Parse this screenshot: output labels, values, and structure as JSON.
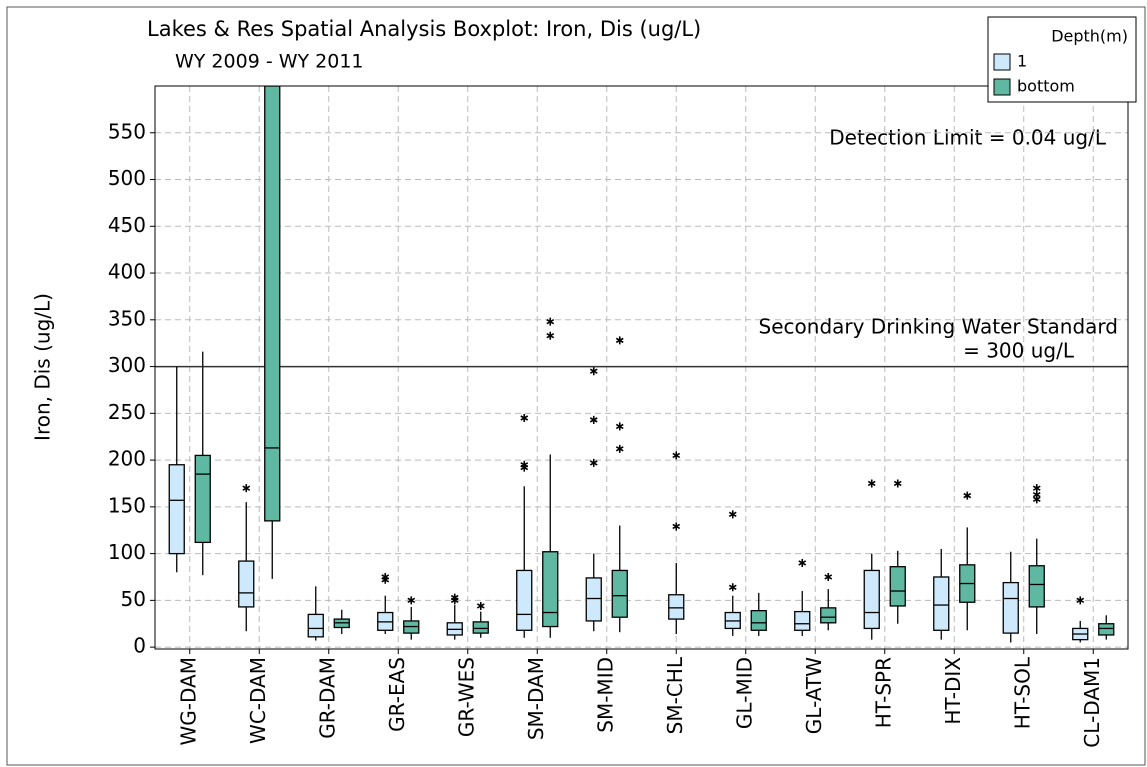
{
  "chart_data": {
    "type": "boxplot",
    "title": "Lakes & Res Spatial Analysis Boxplot: Iron, Dis (ug/L)",
    "subtitle": "WY 2009 - WY 2011",
    "y_label": "Iron, Dis (ug/L)",
    "categories": [
      "WG-DAM",
      "WC-DAM",
      "GR-DAM",
      "GR-EAS",
      "GR-WES",
      "SM-DAM",
      "SM-MID",
      "SM-CHL",
      "GL-MID",
      "GL-ATW",
      "HT-SPR",
      "HT-DIX",
      "HT-SOL",
      "CL-DAM1"
    ],
    "legend_title": "Depth(m)",
    "legend_position": "top-right",
    "grid": true,
    "ylim": [
      -2,
      600
    ],
    "yticks": [
      0,
      50,
      100,
      150,
      200,
      250,
      300,
      350,
      400,
      450,
      500,
      550
    ],
    "reference_line": {
      "value": 300,
      "label_lines": [
        "Secondary Drinking Water Standard",
        "= 300 ug/L"
      ]
    },
    "annotation": "Detection Limit = 0.04 ug/L",
    "series": [
      {
        "name": "1",
        "color": "#cde9fb",
        "boxes": [
          {
            "min": 80,
            "q1": 100,
            "median": 157,
            "q3": 195,
            "max": 300,
            "outliers": []
          },
          {
            "min": 17,
            "q1": 43,
            "median": 58,
            "q3": 92,
            "max": 155,
            "outliers": [
              170
            ]
          },
          {
            "min": 7,
            "q1": 11,
            "median": 20,
            "q3": 35,
            "max": 65,
            "outliers": []
          },
          {
            "min": 14,
            "q1": 18,
            "median": 27,
            "q3": 37,
            "max": 55,
            "outliers": [
              72,
              75
            ]
          },
          {
            "min": 8,
            "q1": 13,
            "median": 19,
            "q3": 26,
            "max": 45,
            "outliers": [
              50,
              53
            ]
          },
          {
            "min": 10,
            "q1": 18,
            "median": 35,
            "q3": 82,
            "max": 172,
            "outliers": [
              192,
              195,
              245
            ]
          },
          {
            "min": 17,
            "q1": 28,
            "median": 52,
            "q3": 74,
            "max": 100,
            "outliers": [
              197,
              243,
              295
            ]
          },
          {
            "min": 14,
            "q1": 30,
            "median": 42,
            "q3": 56,
            "max": 90,
            "outliers": [
              129,
              205
            ]
          },
          {
            "min": 12,
            "q1": 20,
            "median": 28,
            "q3": 37,
            "max": 55,
            "outliers": [
              64,
              142
            ]
          },
          {
            "min": 12,
            "q1": 18,
            "median": 25,
            "q3": 38,
            "max": 60,
            "outliers": [
              90
            ]
          },
          {
            "min": 8,
            "q1": 20,
            "median": 37,
            "q3": 82,
            "max": 100,
            "outliers": [
              175
            ]
          },
          {
            "min": 8,
            "q1": 18,
            "median": 45,
            "q3": 75,
            "max": 105,
            "outliers": []
          },
          {
            "min": 5,
            "q1": 15,
            "median": 52,
            "q3": 69,
            "max": 102,
            "outliers": []
          },
          {
            "min": 5,
            "q1": 8,
            "median": 14,
            "q3": 20,
            "max": 28,
            "outliers": [
              50
            ]
          }
        ]
      },
      {
        "name": "bottom",
        "color": "#5fb8a2",
        "boxes": [
          {
            "min": 77,
            "q1": 112,
            "median": 185,
            "q3": 205,
            "max": 316,
            "outliers": []
          },
          {
            "min": 73,
            "q1": 135,
            "median": 213,
            "q3": 600,
            "max": 600,
            "outliers": []
          },
          {
            "min": 14,
            "q1": 21,
            "median": 26,
            "q3": 30,
            "max": 40,
            "outliers": []
          },
          {
            "min": 8,
            "q1": 15,
            "median": 22,
            "q3": 28,
            "max": 43,
            "outliers": [
              50
            ]
          },
          {
            "min": 10,
            "q1": 15,
            "median": 20,
            "q3": 27,
            "max": 38,
            "outliers": [
              44
            ]
          },
          {
            "min": 10,
            "q1": 22,
            "median": 37,
            "q3": 102,
            "max": 206,
            "outliers": [
              333,
              348
            ]
          },
          {
            "min": 16,
            "q1": 32,
            "median": 55,
            "q3": 82,
            "max": 130,
            "outliers": [
              212,
              236,
              328
            ]
          },
          null,
          {
            "min": 12,
            "q1": 18,
            "median": 26,
            "q3": 39,
            "max": 58,
            "outliers": []
          },
          {
            "min": 18,
            "q1": 26,
            "median": 32,
            "q3": 42,
            "max": 62,
            "outliers": [
              75
            ]
          },
          {
            "min": 25,
            "q1": 44,
            "median": 60,
            "q3": 86,
            "max": 103,
            "outliers": [
              175
            ]
          },
          {
            "min": 18,
            "q1": 48,
            "median": 68,
            "q3": 88,
            "max": 128,
            "outliers": [
              162
            ]
          },
          {
            "min": 14,
            "q1": 43,
            "median": 67,
            "q3": 87,
            "max": 116,
            "outliers": [
              158,
              163,
              170
            ]
          },
          {
            "min": 8,
            "q1": 13,
            "median": 20,
            "q3": 25,
            "max": 34,
            "outliers": []
          }
        ]
      }
    ]
  }
}
